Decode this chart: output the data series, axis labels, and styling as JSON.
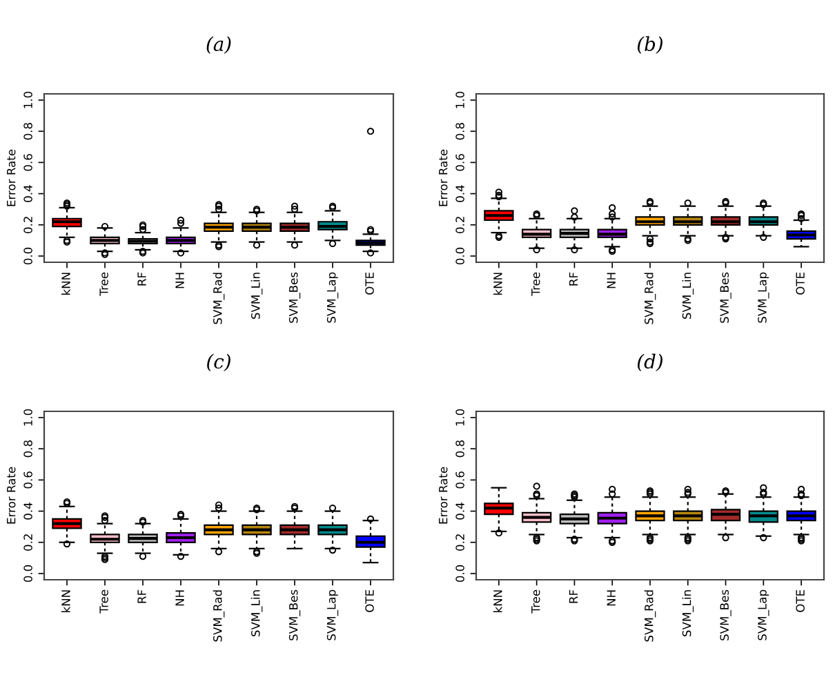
{
  "chart_data": [
    {
      "type": "box",
      "title": "(a)",
      "ylabel": "Error Rate",
      "categories": [
        "kNN",
        "Tree",
        "RF",
        "NH",
        "SVM_Rad",
        "SVM_Lin",
        "SVM_Bes",
        "SVM_Lap",
        "OTE"
      ],
      "colors": [
        "#ff0000",
        "#ffc0cb",
        "#bebebe",
        "#a020f0",
        "#ffa500",
        "#b8860b",
        "#a52a2a",
        "#008b8b",
        "#0000ff"
      ],
      "ylim": [
        -0.04,
        1.04
      ],
      "yticks": [
        {
          "value": 0,
          "label": "0.0"
        },
        {
          "value": 0.2,
          "label": "0.2"
        },
        {
          "value": 0.4,
          "label": "0.4"
        },
        {
          "value": 0.6,
          "label": "0.6"
        },
        {
          "value": 0.8,
          "label": "0.8"
        },
        {
          "value": 1,
          "label": "1.0"
        }
      ],
      "boxes": [
        {
          "low": 0.12,
          "q1": 0.19,
          "median": 0.22,
          "q3": 0.24,
          "high": 0.31,
          "outliers": [
            0.32,
            0.33,
            0.34,
            0.1,
            0.09
          ]
        },
        {
          "low": 0.03,
          "q1": 0.08,
          "median": 0.1,
          "q3": 0.12,
          "high": 0.18,
          "outliers": [
            0.19,
            0.02,
            0.01
          ]
        },
        {
          "low": 0.04,
          "q1": 0.08,
          "median": 0.095,
          "q3": 0.11,
          "high": 0.15,
          "outliers": [
            0.17,
            0.19,
            0.2,
            0.03,
            0.02
          ]
        },
        {
          "low": 0.03,
          "q1": 0.08,
          "median": 0.1,
          "q3": 0.12,
          "high": 0.18,
          "outliers": [
            0.21,
            0.23,
            0.02
          ]
        },
        {
          "low": 0.09,
          "q1": 0.16,
          "median": 0.185,
          "q3": 0.21,
          "high": 0.28,
          "outliers": [
            0.3,
            0.32,
            0.33,
            0.07,
            0.06
          ]
        },
        {
          "low": 0.09,
          "q1": 0.16,
          "median": 0.185,
          "q3": 0.21,
          "high": 0.28,
          "outliers": [
            0.29,
            0.3,
            0.07
          ]
        },
        {
          "low": 0.09,
          "q1": 0.16,
          "median": 0.185,
          "q3": 0.21,
          "high": 0.28,
          "outliers": [
            0.3,
            0.32,
            0.07
          ]
        },
        {
          "low": 0.1,
          "q1": 0.17,
          "median": 0.19,
          "q3": 0.22,
          "high": 0.29,
          "outliers": [
            0.31,
            0.32,
            0.08
          ]
        },
        {
          "low": 0.03,
          "q1": 0.07,
          "median": 0.085,
          "q3": 0.1,
          "high": 0.14,
          "outliers": [
            0.16,
            0.17,
            0.02,
            0.8
          ]
        }
      ]
    },
    {
      "type": "box",
      "title": "(b)",
      "ylabel": "Error Rate",
      "categories": [
        "kNN",
        "Tree",
        "RF",
        "NH",
        "SVM_Rad",
        "SVM_Lin",
        "SVM_Bes",
        "SVM_Lap",
        "OTE"
      ],
      "colors": [
        "#ff0000",
        "#ffc0cb",
        "#bebebe",
        "#a020f0",
        "#ffa500",
        "#b8860b",
        "#a52a2a",
        "#008b8b",
        "#0000ff"
      ],
      "ylim": [
        -0.04,
        1.04
      ],
      "yticks": [
        {
          "value": 0,
          "label": "0.0"
        },
        {
          "value": 0.2,
          "label": "0.2"
        },
        {
          "value": 0.4,
          "label": "0.4"
        },
        {
          "value": 0.6,
          "label": "0.6"
        },
        {
          "value": 0.8,
          "label": "0.8"
        },
        {
          "value": 1,
          "label": "1.0"
        }
      ],
      "boxes": [
        {
          "low": 0.15,
          "q1": 0.23,
          "median": 0.26,
          "q3": 0.29,
          "high": 0.37,
          "outliers": [
            0.38,
            0.39,
            0.41,
            0.13,
            0.12
          ]
        },
        {
          "low": 0.05,
          "q1": 0.12,
          "median": 0.14,
          "q3": 0.17,
          "high": 0.24,
          "outliers": [
            0.26,
            0.27,
            0.04
          ]
        },
        {
          "low": 0.05,
          "q1": 0.12,
          "median": 0.145,
          "q3": 0.17,
          "high": 0.24,
          "outliers": [
            0.25,
            0.29,
            0.04
          ]
        },
        {
          "low": 0.06,
          "q1": 0.12,
          "median": 0.14,
          "q3": 0.17,
          "high": 0.24,
          "outliers": [
            0.25,
            0.27,
            0.31,
            0.04,
            0.03
          ]
        },
        {
          "low": 0.13,
          "q1": 0.2,
          "median": 0.22,
          "q3": 0.25,
          "high": 0.32,
          "outliers": [
            0.34,
            0.35,
            0.11,
            0.09,
            0.08
          ]
        },
        {
          "low": 0.13,
          "q1": 0.2,
          "median": 0.22,
          "q3": 0.25,
          "high": 0.32,
          "outliers": [
            0.34,
            0.11,
            0.1
          ]
        },
        {
          "low": 0.13,
          "q1": 0.2,
          "median": 0.22,
          "q3": 0.25,
          "high": 0.32,
          "outliers": [
            0.34,
            0.35,
            0.12,
            0.11
          ]
        },
        {
          "low": 0.13,
          "q1": 0.2,
          "median": 0.22,
          "q3": 0.25,
          "high": 0.32,
          "outliers": [
            0.33,
            0.34,
            0.12
          ]
        },
        {
          "low": 0.06,
          "q1": 0.11,
          "median": 0.135,
          "q3": 0.16,
          "high": 0.23,
          "outliers": [
            0.24,
            0.26,
            0.27
          ]
        }
      ]
    },
    {
      "type": "box",
      "title": "(c)",
      "ylabel": "Error Rate",
      "categories": [
        "kNN",
        "Tree",
        "RF",
        "NH",
        "SVM_Rad",
        "SVM_Lin",
        "SVM_Bes",
        "SVM_Lap",
        "OTE"
      ],
      "colors": [
        "#ff0000",
        "#ffc0cb",
        "#bebebe",
        "#a020f0",
        "#ffa500",
        "#b8860b",
        "#a52a2a",
        "#008b8b",
        "#0000ff"
      ],
      "ylim": [
        -0.04,
        1.04
      ],
      "yticks": [
        {
          "value": 0,
          "label": "0.0"
        },
        {
          "value": 0.2,
          "label": "0.2"
        },
        {
          "value": 0.4,
          "label": "0.4"
        },
        {
          "value": 0.6,
          "label": "0.6"
        },
        {
          "value": 0.8,
          "label": "0.8"
        },
        {
          "value": 1,
          "label": "1.0"
        }
      ],
      "boxes": [
        {
          "low": 0.2,
          "q1": 0.29,
          "median": 0.32,
          "q3": 0.35,
          "high": 0.43,
          "outliers": [
            0.45,
            0.46,
            0.19
          ]
        },
        {
          "low": 0.13,
          "q1": 0.2,
          "median": 0.22,
          "q3": 0.25,
          "high": 0.32,
          "outliers": [
            0.34,
            0.36,
            0.37,
            0.11,
            0.1,
            0.09
          ]
        },
        {
          "low": 0.13,
          "q1": 0.2,
          "median": 0.225,
          "q3": 0.25,
          "high": 0.32,
          "outliers": [
            0.33,
            0.34,
            0.11
          ]
        },
        {
          "low": 0.12,
          "q1": 0.2,
          "median": 0.23,
          "q3": 0.26,
          "high": 0.35,
          "outliers": [
            0.37,
            0.38,
            0.11
          ]
        },
        {
          "low": 0.16,
          "q1": 0.25,
          "median": 0.28,
          "q3": 0.31,
          "high": 0.4,
          "outliers": [
            0.42,
            0.44,
            0.14
          ]
        },
        {
          "low": 0.16,
          "q1": 0.25,
          "median": 0.28,
          "q3": 0.31,
          "high": 0.4,
          "outliers": [
            0.41,
            0.42,
            0.14,
            0.13
          ]
        },
        {
          "low": 0.16,
          "q1": 0.25,
          "median": 0.28,
          "q3": 0.31,
          "high": 0.4,
          "outliers": [
            0.42,
            0.43
          ]
        },
        {
          "low": 0.16,
          "q1": 0.25,
          "median": 0.28,
          "q3": 0.31,
          "high": 0.4,
          "outliers": [
            0.42,
            0.15
          ]
        },
        {
          "low": 0.07,
          "q1": 0.17,
          "median": 0.2,
          "q3": 0.24,
          "high": 0.34,
          "outliers": [
            0.35
          ]
        }
      ]
    },
    {
      "type": "box",
      "title": "(d)",
      "ylabel": "Error Rate",
      "categories": [
        "kNN",
        "Tree",
        "RF",
        "NH",
        "SVM_Rad",
        "SVM_Lin",
        "SVM_Bes",
        "SVM_Lap",
        "OTE"
      ],
      "colors": [
        "#ff0000",
        "#ffc0cb",
        "#bebebe",
        "#a020f0",
        "#ffa500",
        "#b8860b",
        "#a52a2a",
        "#008b8b",
        "#0000ff"
      ],
      "ylim": [
        -0.04,
        1.04
      ],
      "yticks": [
        {
          "value": 0,
          "label": "0.0"
        },
        {
          "value": 0.2,
          "label": "0.2"
        },
        {
          "value": 0.4,
          "label": "0.4"
        },
        {
          "value": 0.6,
          "label": "0.6"
        },
        {
          "value": 0.8,
          "label": "0.8"
        },
        {
          "value": 1,
          "label": "1.0"
        }
      ],
      "boxes": [
        {
          "low": 0.27,
          "q1": 0.38,
          "median": 0.42,
          "q3": 0.45,
          "high": 0.55,
          "outliers": [
            0.26
          ]
        },
        {
          "low": 0.25,
          "q1": 0.33,
          "median": 0.36,
          "q3": 0.39,
          "high": 0.48,
          "outliers": [
            0.5,
            0.51,
            0.56,
            0.23,
            0.22,
            0.21
          ]
        },
        {
          "low": 0.23,
          "q1": 0.32,
          "median": 0.35,
          "q3": 0.38,
          "high": 0.47,
          "outliers": [
            0.49,
            0.5,
            0.51,
            0.22,
            0.21
          ]
        },
        {
          "low": 0.23,
          "q1": 0.32,
          "median": 0.355,
          "q3": 0.39,
          "high": 0.49,
          "outliers": [
            0.51,
            0.54,
            0.21,
            0.2
          ]
        },
        {
          "low": 0.25,
          "q1": 0.34,
          "median": 0.37,
          "q3": 0.4,
          "high": 0.49,
          "outliers": [
            0.51,
            0.52,
            0.53,
            0.23,
            0.22,
            0.21
          ]
        },
        {
          "low": 0.25,
          "q1": 0.34,
          "median": 0.37,
          "q3": 0.4,
          "high": 0.49,
          "outliers": [
            0.51,
            0.52,
            0.54,
            0.23,
            0.22,
            0.21
          ]
        },
        {
          "low": 0.25,
          "q1": 0.34,
          "median": 0.38,
          "q3": 0.41,
          "high": 0.51,
          "outliers": [
            0.52,
            0.53,
            0.23
          ]
        },
        {
          "low": 0.24,
          "q1": 0.33,
          "median": 0.37,
          "q3": 0.4,
          "high": 0.49,
          "outliers": [
            0.51,
            0.52,
            0.55,
            0.23
          ]
        },
        {
          "low": 0.25,
          "q1": 0.34,
          "median": 0.37,
          "q3": 0.4,
          "high": 0.49,
          "outliers": [
            0.5,
            0.51,
            0.54,
            0.23,
            0.22,
            0.21
          ]
        }
      ]
    }
  ]
}
